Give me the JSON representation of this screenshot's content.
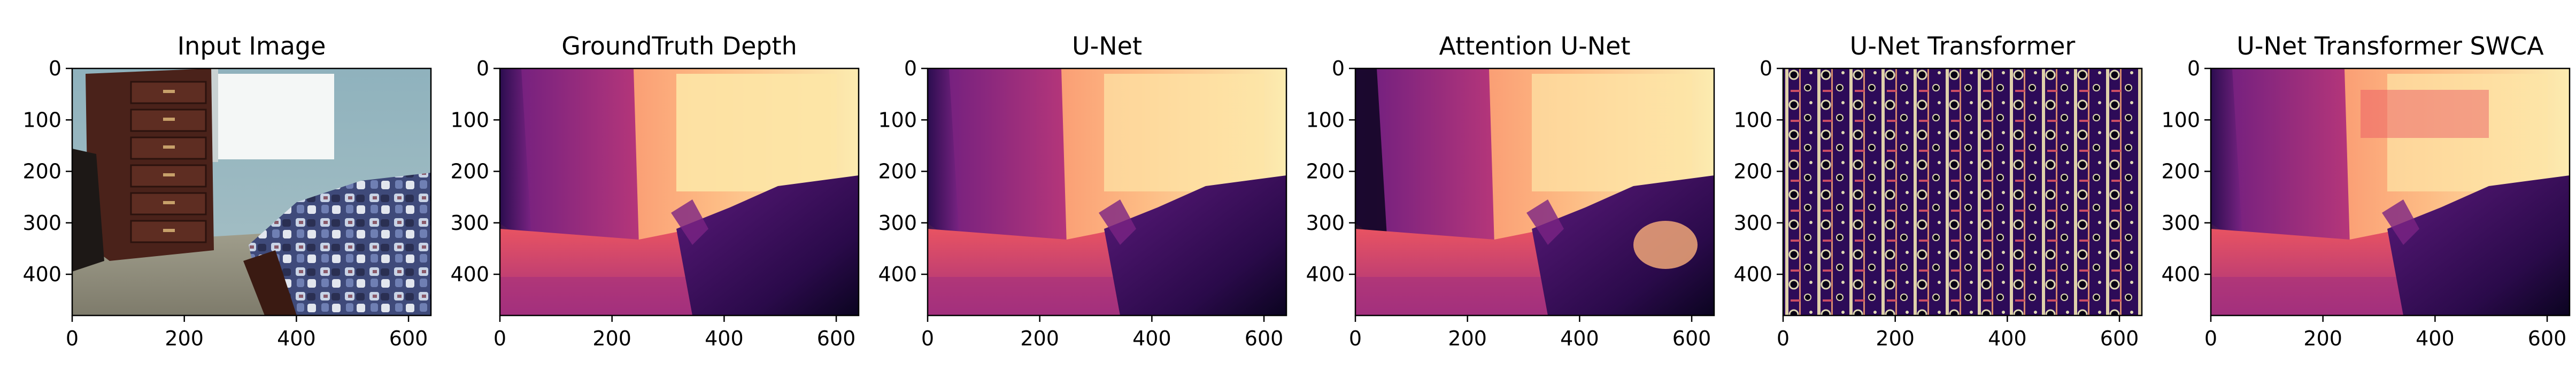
{
  "figure": {
    "panels": [
      {
        "title": "Input Image",
        "kind": "rgb"
      },
      {
        "title": "GroundTruth Depth",
        "kind": "gt"
      },
      {
        "title": "U-Net",
        "kind": "unet"
      },
      {
        "title": "Attention U-Net",
        "kind": "attn"
      },
      {
        "title": "U-Net Transformer",
        "kind": "noisy"
      },
      {
        "title": "U-Net Transformer SWCA",
        "kind": "swca"
      }
    ],
    "x_ticks": [
      "0",
      "200",
      "400",
      "600"
    ],
    "y_ticks": [
      "0",
      "100",
      "200",
      "300",
      "400"
    ],
    "colormap": "magma"
  }
}
